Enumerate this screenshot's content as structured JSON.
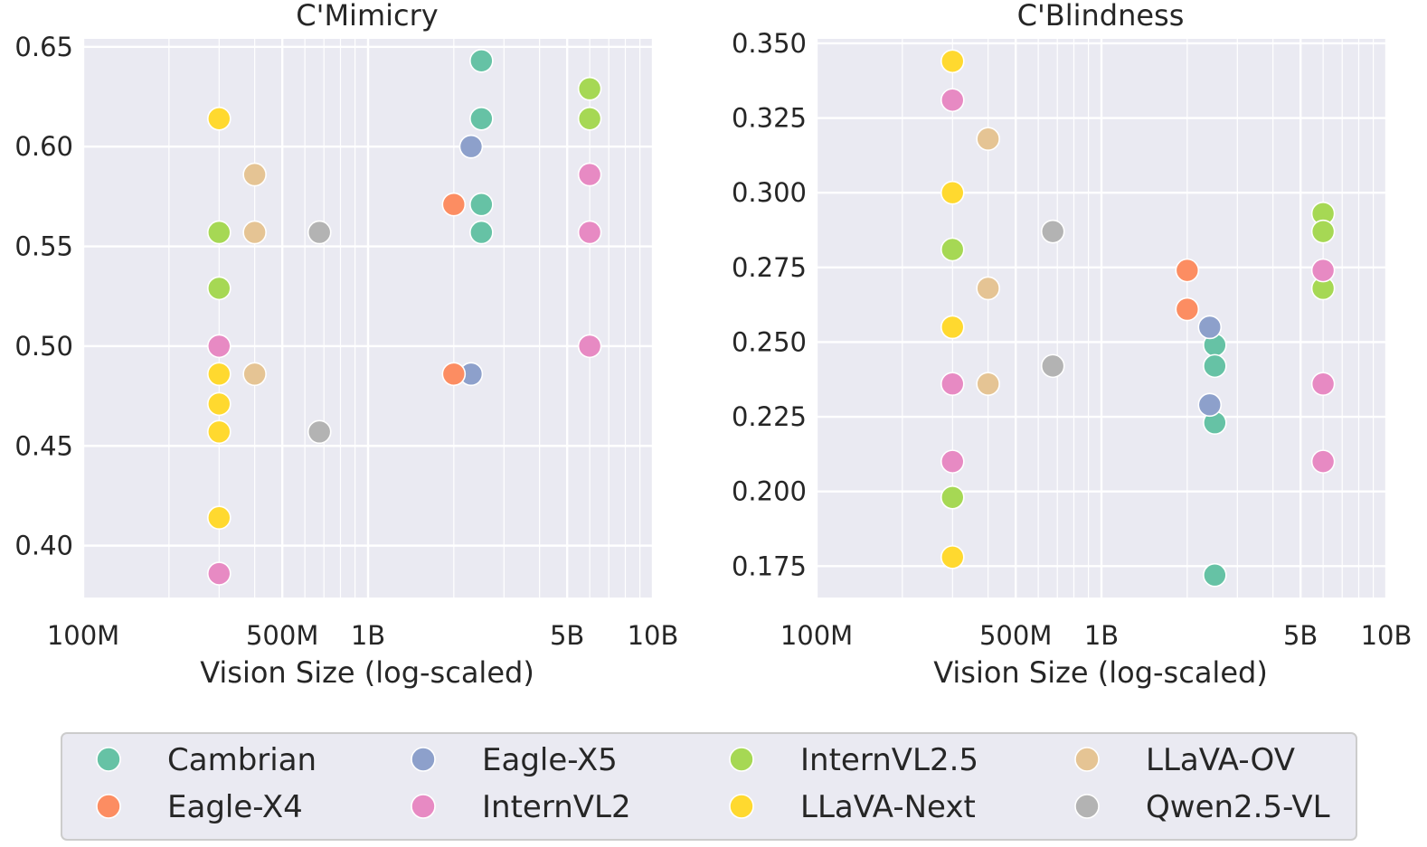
{
  "chart_data": [
    {
      "type": "scatter",
      "title": "C'Mimicry",
      "xlabel": "Vision Size (log-scaled)",
      "ylabel": "",
      "xscale": "log",
      "xlim": [
        100000000,
        10000000000
      ],
      "ylim": [
        0.374,
        0.654
      ],
      "xticks": [
        {
          "v": 100000000,
          "label": "100M"
        },
        {
          "v": 500000000,
          "label": "500M"
        },
        {
          "v": 1000000000,
          "label": "1B"
        },
        {
          "v": 5000000000,
          "label": "5B"
        },
        {
          "v": 10000000000,
          "label": "10B"
        }
      ],
      "yticks": [
        {
          "v": 0.4,
          "label": "0.40"
        },
        {
          "v": 0.45,
          "label": "0.45"
        },
        {
          "v": 0.5,
          "label": "0.50"
        },
        {
          "v": 0.55,
          "label": "0.55"
        },
        {
          "v": 0.6,
          "label": "0.60"
        },
        {
          "v": 0.65,
          "label": "0.65"
        }
      ],
      "grid": true,
      "series": [
        {
          "name": "Cambrian",
          "points": [
            [
              2500000000,
              0.643
            ],
            [
              2500000000,
              0.614
            ],
            [
              2500000000,
              0.571
            ],
            [
              2500000000,
              0.557
            ]
          ]
        },
        {
          "name": "Eagle-X5",
          "points": [
            [
              2300000000,
              0.6
            ],
            [
              2300000000,
              0.486
            ]
          ]
        },
        {
          "name": "InternVL2.5",
          "points": [
            [
              6000000000,
              0.629
            ],
            [
              6000000000,
              0.614
            ],
            [
              300000000,
              0.557
            ],
            [
              300000000,
              0.529
            ]
          ]
        },
        {
          "name": "LLaVA-OV",
          "points": [
            [
              400000000,
              0.586
            ],
            [
              400000000,
              0.557
            ],
            [
              400000000,
              0.486
            ]
          ]
        },
        {
          "name": "Eagle-X4",
          "points": [
            [
              2000000000,
              0.571
            ],
            [
              2000000000,
              0.486
            ]
          ]
        },
        {
          "name": "InternVL2",
          "points": [
            [
              6000000000,
              0.586
            ],
            [
              6000000000,
              0.557
            ],
            [
              6000000000,
              0.5
            ],
            [
              300000000,
              0.5
            ],
            [
              300000000,
              0.386
            ]
          ]
        },
        {
          "name": "LLaVA-Next",
          "points": [
            [
              300000000,
              0.614
            ],
            [
              300000000,
              0.486
            ],
            [
              300000000,
              0.471
            ],
            [
              300000000,
              0.457
            ],
            [
              300000000,
              0.414
            ]
          ]
        },
        {
          "name": "Qwen2.5-VL",
          "points": [
            [
              675000000,
              0.557
            ],
            [
              675000000,
              0.457
            ]
          ]
        }
      ]
    },
    {
      "type": "scatter",
      "title": "C'Blindness",
      "xlabel": "Vision Size (log-scaled)",
      "ylabel": "",
      "xscale": "log",
      "xlim": [
        100000000,
        10000000000
      ],
      "ylim": [
        0.1645,
        0.3515
      ],
      "xticks": [
        {
          "v": 100000000,
          "label": "100M"
        },
        {
          "v": 500000000,
          "label": "500M"
        },
        {
          "v": 1000000000,
          "label": "1B"
        },
        {
          "v": 5000000000,
          "label": "5B"
        },
        {
          "v": 10000000000,
          "label": "10B"
        }
      ],
      "yticks": [
        {
          "v": 0.175,
          "label": "0.175"
        },
        {
          "v": 0.2,
          "label": "0.200"
        },
        {
          "v": 0.225,
          "label": "0.225"
        },
        {
          "v": 0.25,
          "label": "0.250"
        },
        {
          "v": 0.275,
          "label": "0.275"
        },
        {
          "v": 0.3,
          "label": "0.300"
        },
        {
          "v": 0.325,
          "label": "0.325"
        },
        {
          "v": 0.35,
          "label": "0.350"
        }
      ],
      "grid": true,
      "series": [
        {
          "name": "Cambrian",
          "points": [
            [
              2500000000,
              0.249
            ],
            [
              2500000000,
              0.242
            ],
            [
              2500000000,
              0.223
            ],
            [
              2500000000,
              0.172
            ]
          ]
        },
        {
          "name": "Eagle-X5",
          "points": [
            [
              2400000000,
              0.255
            ],
            [
              2400000000,
              0.229
            ]
          ]
        },
        {
          "name": "InternVL2.5",
          "points": [
            [
              6000000000,
              0.293
            ],
            [
              6000000000,
              0.287
            ],
            [
              6000000000,
              0.268
            ],
            [
              300000000,
              0.281
            ],
            [
              300000000,
              0.198
            ]
          ]
        },
        {
          "name": "LLaVA-OV",
          "points": [
            [
              400000000,
              0.318
            ],
            [
              400000000,
              0.268
            ],
            [
              400000000,
              0.236
            ]
          ]
        },
        {
          "name": "Eagle-X4",
          "points": [
            [
              2000000000,
              0.274
            ],
            [
              2000000000,
              0.261
            ]
          ]
        },
        {
          "name": "InternVL2",
          "points": [
            [
              300000000,
              0.331
            ],
            [
              300000000,
              0.236
            ],
            [
              300000000,
              0.21
            ],
            [
              6000000000,
              0.274
            ],
            [
              6000000000,
              0.236
            ],
            [
              6000000000,
              0.21
            ]
          ]
        },
        {
          "name": "LLaVA-Next",
          "points": [
            [
              300000000,
              0.344
            ],
            [
              300000000,
              0.3
            ],
            [
              300000000,
              0.255
            ],
            [
              300000000,
              0.178
            ]
          ]
        },
        {
          "name": "Qwen2.5-VL",
          "points": [
            [
              675000000,
              0.287
            ],
            [
              675000000,
              0.242
            ]
          ]
        }
      ]
    }
  ],
  "legend": {
    "placement": "bottom",
    "items": [
      {
        "label": "Cambrian",
        "color": "#66c2a5"
      },
      {
        "label": "Eagle-X5",
        "color": "#8da0cb"
      },
      {
        "label": "InternVL2.5",
        "color": "#a6d854"
      },
      {
        "label": "LLaVA-OV",
        "color": "#e5c494"
      },
      {
        "label": "Eagle-X4",
        "color": "#fc8d62"
      },
      {
        "label": "InternVL2",
        "color": "#e78ac3"
      },
      {
        "label": "LLaVA-Next",
        "color": "#ffd92f"
      },
      {
        "label": "Qwen2.5-VL",
        "color": "#b3b3b3"
      }
    ]
  }
}
